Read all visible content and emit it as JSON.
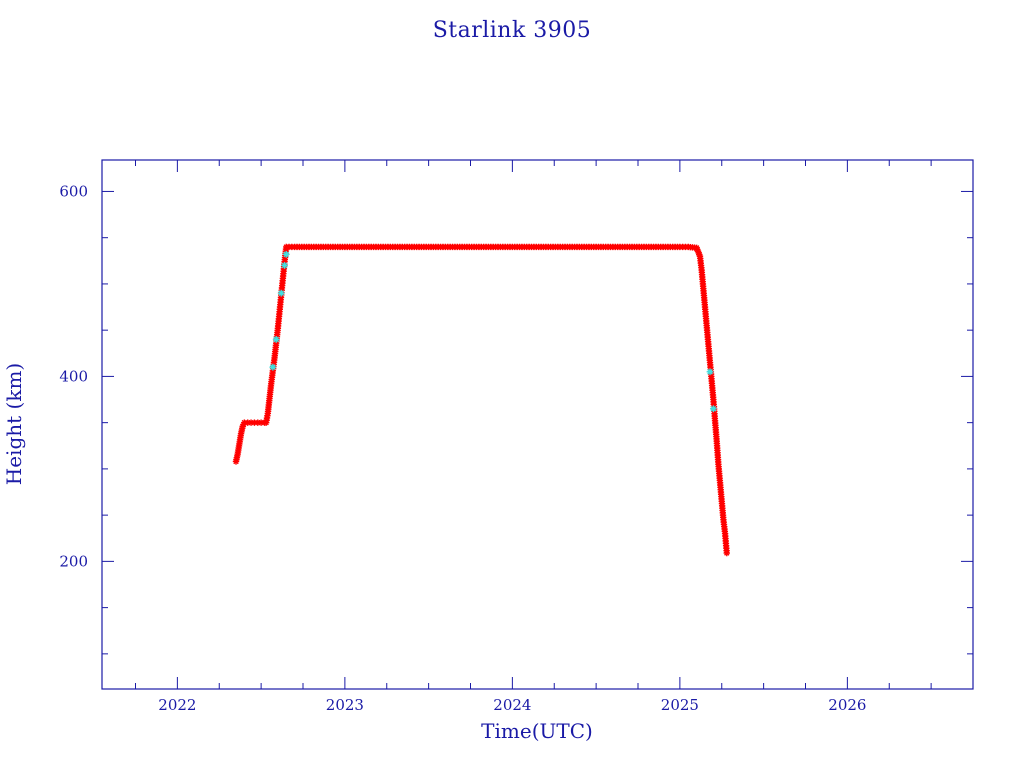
{
  "chart_data": {
    "type": "scatter",
    "title": "Starlink 3905",
    "xlabel": "Time(UTC)",
    "ylabel": "Height (km)",
    "xlim": [
      2021.55,
      2026.75
    ],
    "ylim": [
      62,
      634
    ],
    "x_major_ticks": [
      2022,
      2023,
      2024,
      2025,
      2026
    ],
    "x_tick_labels": [
      "2022",
      "2023",
      "2024",
      "2025",
      "2026"
    ],
    "x_minor_step": 0.25,
    "y_major_ticks": [
      200,
      400,
      600
    ],
    "y_tick_labels": [
      "200",
      "400",
      "600"
    ],
    "y_minor_step": 50,
    "grid": false,
    "colors": {
      "frame": "#1a1aa6",
      "marker": "#ff0000",
      "marker_alt": "#40e0e0",
      "line": "#202020"
    },
    "series": [
      {
        "marker": "star",
        "color": "#ff0000",
        "points": [
          [
            2022.35,
            308
          ],
          [
            2022.36,
            316
          ],
          [
            2022.37,
            327
          ],
          [
            2022.38,
            338
          ],
          [
            2022.39,
            346
          ],
          [
            2022.4,
            350
          ],
          [
            2022.42,
            350
          ],
          [
            2022.44,
            350
          ],
          [
            2022.46,
            350
          ],
          [
            2022.48,
            350
          ],
          [
            2022.5,
            350
          ],
          [
            2022.52,
            350
          ],
          [
            2022.53,
            350
          ],
          [
            2022.54,
            360
          ],
          [
            2022.55,
            376
          ],
          [
            2022.56,
            392
          ],
          [
            2022.57,
            406
          ],
          [
            2022.58,
            420
          ],
          [
            2022.59,
            436
          ],
          [
            2022.6,
            452
          ],
          [
            2022.61,
            470
          ],
          [
            2022.62,
            488
          ],
          [
            2022.63,
            506
          ],
          [
            2022.64,
            524
          ],
          [
            2022.65,
            540
          ],
          [
            2022.7,
            540
          ],
          [
            2022.8,
            540
          ],
          [
            2022.9,
            540
          ],
          [
            2023.0,
            540
          ],
          [
            2023.1,
            540
          ],
          [
            2023.2,
            540
          ],
          [
            2023.3,
            540
          ],
          [
            2023.4,
            540
          ],
          [
            2023.5,
            540
          ],
          [
            2023.6,
            540
          ],
          [
            2023.7,
            540
          ],
          [
            2023.8,
            540
          ],
          [
            2023.9,
            540
          ],
          [
            2024.0,
            540
          ],
          [
            2024.1,
            540
          ],
          [
            2024.2,
            540
          ],
          [
            2024.3,
            540
          ],
          [
            2024.4,
            540
          ],
          [
            2024.5,
            540
          ],
          [
            2024.6,
            540
          ],
          [
            2024.7,
            540
          ],
          [
            2024.8,
            540
          ],
          [
            2024.9,
            540
          ],
          [
            2025.0,
            540
          ],
          [
            2025.05,
            540
          ],
          [
            2025.1,
            539
          ],
          [
            2025.12,
            530
          ],
          [
            2025.13,
            515
          ],
          [
            2025.14,
            495
          ],
          [
            2025.15,
            475
          ],
          [
            2025.16,
            455
          ],
          [
            2025.17,
            435
          ],
          [
            2025.18,
            415
          ],
          [
            2025.19,
            395
          ],
          [
            2025.2,
            375
          ],
          [
            2025.21,
            352
          ],
          [
            2025.22,
            330
          ],
          [
            2025.23,
            305
          ],
          [
            2025.24,
            285
          ],
          [
            2025.25,
            265
          ],
          [
            2025.26,
            245
          ],
          [
            2025.27,
            230
          ],
          [
            2025.28,
            209
          ]
        ]
      },
      {
        "marker": "star",
        "color": "#40e0e0",
        "points": [
          [
            2022.57,
            410
          ],
          [
            2022.59,
            440
          ],
          [
            2022.62,
            490
          ],
          [
            2022.64,
            520
          ],
          [
            2022.65,
            532
          ],
          [
            2025.18,
            405
          ],
          [
            2025.2,
            365
          ]
        ]
      }
    ]
  }
}
